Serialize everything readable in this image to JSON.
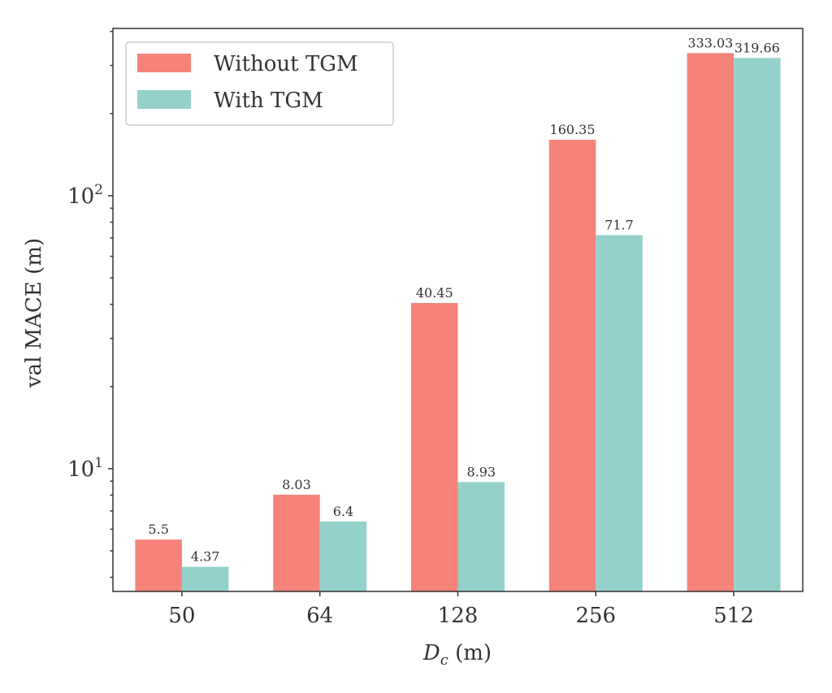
{
  "chart_data": {
    "type": "bar",
    "categories": [
      "50",
      "64",
      "128",
      "256",
      "512"
    ],
    "series": [
      {
        "name": "Without TGM",
        "color": "#F5837A",
        "values": [
          5.5,
          8.03,
          40.45,
          160.35,
          333.03
        ],
        "labels": [
          "5.5",
          "8.03",
          "40.45",
          "160.35",
          "333.03"
        ]
      },
      {
        "name": "With TGM",
        "color": "#95D1CB",
        "values": [
          4.37,
          6.4,
          8.93,
          71.7,
          319.66
        ],
        "labels": [
          "4.37",
          "6.4",
          "8.93",
          "71.7",
          "319.66"
        ]
      }
    ],
    "xlabel": "D_c (m)",
    "ylabel": "val MACE (m)",
    "yscale": "log",
    "ylim": [
      3.55,
      410
    ],
    "yticks": [
      {
        "value": 10,
        "base": "10",
        "exp": "1"
      },
      {
        "value": 100,
        "base": "10",
        "exp": "2"
      }
    ],
    "grid": false,
    "legend": "top-left",
    "axis_color": "#333333"
  }
}
